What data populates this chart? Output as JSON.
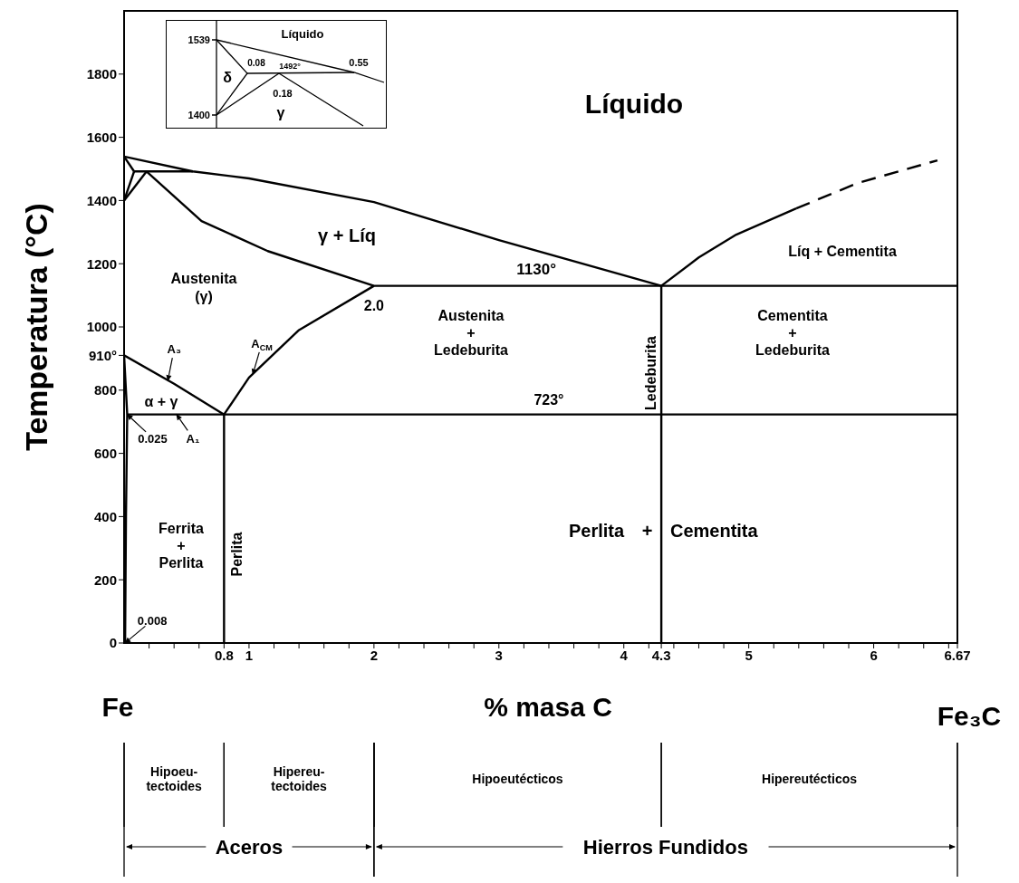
{
  "chart_data": [
    {
      "type": "line",
      "xlabel": "% masa C",
      "ylabel": "Temperatura (°C)",
      "xlim": [
        0,
        6.67
      ],
      "ylim": [
        0,
        2000
      ],
      "xticks": [
        {
          "value": 0.2,
          "label": null
        },
        {
          "value": 0.4,
          "label": null
        },
        {
          "value": 0.6,
          "label": null
        },
        0.8,
        1,
        {
          "value": 1.2,
          "label": null
        },
        {
          "value": 1.4,
          "label": null
        },
        {
          "value": 1.6,
          "label": null
        },
        {
          "value": 1.8,
          "label": null
        },
        2,
        {
          "value": 2.2,
          "label": null
        },
        {
          "value": 2.4,
          "label": null
        },
        {
          "value": 2.6,
          "label": null
        },
        {
          "value": 2.8,
          "label": null
        },
        3,
        {
          "value": 3.2,
          "label": null
        },
        {
          "value": 3.4,
          "label": null
        },
        {
          "value": 3.6,
          "label": null
        },
        {
          "value": 3.8,
          "label": null
        },
        4,
        {
          "value": 4.2,
          "label": null
        },
        4.3,
        {
          "value": 4.4,
          "label": null
        },
        {
          "value": 4.6,
          "label": null
        },
        {
          "value": 4.8,
          "label": null
        },
        5,
        {
          "value": 5.2,
          "label": null
        },
        {
          "value": 5.4,
          "label": null
        },
        {
          "value": 5.6,
          "label": null
        },
        {
          "value": 5.8,
          "label": null
        },
        6,
        {
          "value": 6.2,
          "label": null
        },
        {
          "value": 6.4,
          "label": null
        },
        {
          "value": 6.6,
          "label": null
        },
        6.67
      ],
      "yticks": [
        0,
        200,
        400,
        600,
        800,
        {
          "value": 910,
          "label": "910°"
        },
        1000,
        1200,
        1400,
        1600,
        1800
      ],
      "line_style": "solid",
      "series": [
        {
          "color": "#000000",
          "x": [
            0,
            0.55,
            1,
            2,
            3,
            4.3,
            4.6,
            4.9,
            5.38
          ],
          "values": [
            1539,
            1492,
            1470,
            1395,
            1275,
            1130,
            1220,
            1292,
            1375
          ]
        },
        {
          "color": "#000000",
          "x": [
            0.18,
            0.62,
            1.15,
            2,
            6.67
          ],
          "values": [
            1492,
            1335,
            1240,
            1130,
            1130
          ]
        },
        {
          "color": "#000000",
          "x": [
            0.08,
            0.55
          ],
          "values": [
            1492,
            1492
          ]
        },
        {
          "color": "#000000",
          "x": [
            0,
            0.08
          ],
          "values": [
            1539,
            1492
          ]
        },
        {
          "color": "#000000",
          "x": [
            0,
            0.08
          ],
          "values": [
            1400,
            1492
          ]
        },
        {
          "color": "#000000",
          "x": [
            0,
            0.18
          ],
          "values": [
            1400,
            1492
          ]
        },
        {
          "color": "#000000",
          "x": [
            5.38,
            5.87,
            6.51
          ],
          "values": [
            1375,
            1455,
            1527
          ],
          "line_style": "dashed"
        },
        {
          "color": "#000000",
          "x": [
            0,
            0.4,
            0.8,
            1,
            1.4,
            2
          ],
          "values": [
            910,
            820,
            723,
            840,
            990,
            1130
          ]
        },
        {
          "color": "#000000",
          "x": [
            0,
            0.025,
            0.015,
            0.008
          ],
          "values": [
            910,
            723,
            400,
            0
          ]
        },
        {
          "color": "#000000",
          "x": [
            0.025,
            6.67
          ],
          "values": [
            723,
            723
          ]
        },
        {
          "color": "#000000",
          "x": [
            0.8,
            0.8
          ],
          "values": [
            0,
            723
          ]
        },
        {
          "color": "#000000",
          "x": [
            4.3,
            4.3
          ],
          "values": [
            0,
            1130
          ]
        }
      ],
      "annotations": [
        "Líquido",
        "γ + Líq",
        "Austenita\n(γ)",
        {
          "text": "1130°",
          "x": 3.3,
          "y": 1130
        },
        {
          "text": "2.0",
          "x": 2,
          "y": 1130
        },
        "Austenita\n+\nLedeburita",
        "Ledeburita",
        "Cementita\n+\nLedeburita",
        "Líq + Cementita",
        {
          "text": "723°",
          "x": 3.4,
          "y": 723
        },
        "α + γ",
        {
          "text": "A₃",
          "x": 0.35,
          "y": 830
        },
        {
          "text": "A$_{CM}$",
          "x": 1.03,
          "y": 850
        },
        {
          "text": "0.025",
          "x": 0.025,
          "y": 723
        },
        {
          "text": "A₁",
          "x": 0.42,
          "y": 723
        },
        {
          "text": "0.008",
          "x": 0.008,
          "y": 0
        },
        "Ferrita\n+\nPerlita",
        "Perlita",
        "Perlita + Cementita",
        "Fe",
        "Fe₃C",
        "Hipoeu-\ntectoides",
        "Hipereu-\ntectoides",
        "Hipoeutécticos",
        "Hipereutécticos",
        "Aceros",
        "Hierros Fundidos"
      ]
    },
    {
      "type": "other",
      "annotations": [
        "1539",
        "1400",
        "Líquido",
        "δ",
        "0.08",
        "1492°",
        "0.55",
        "0.18",
        "γ"
      ]
    }
  ]
}
